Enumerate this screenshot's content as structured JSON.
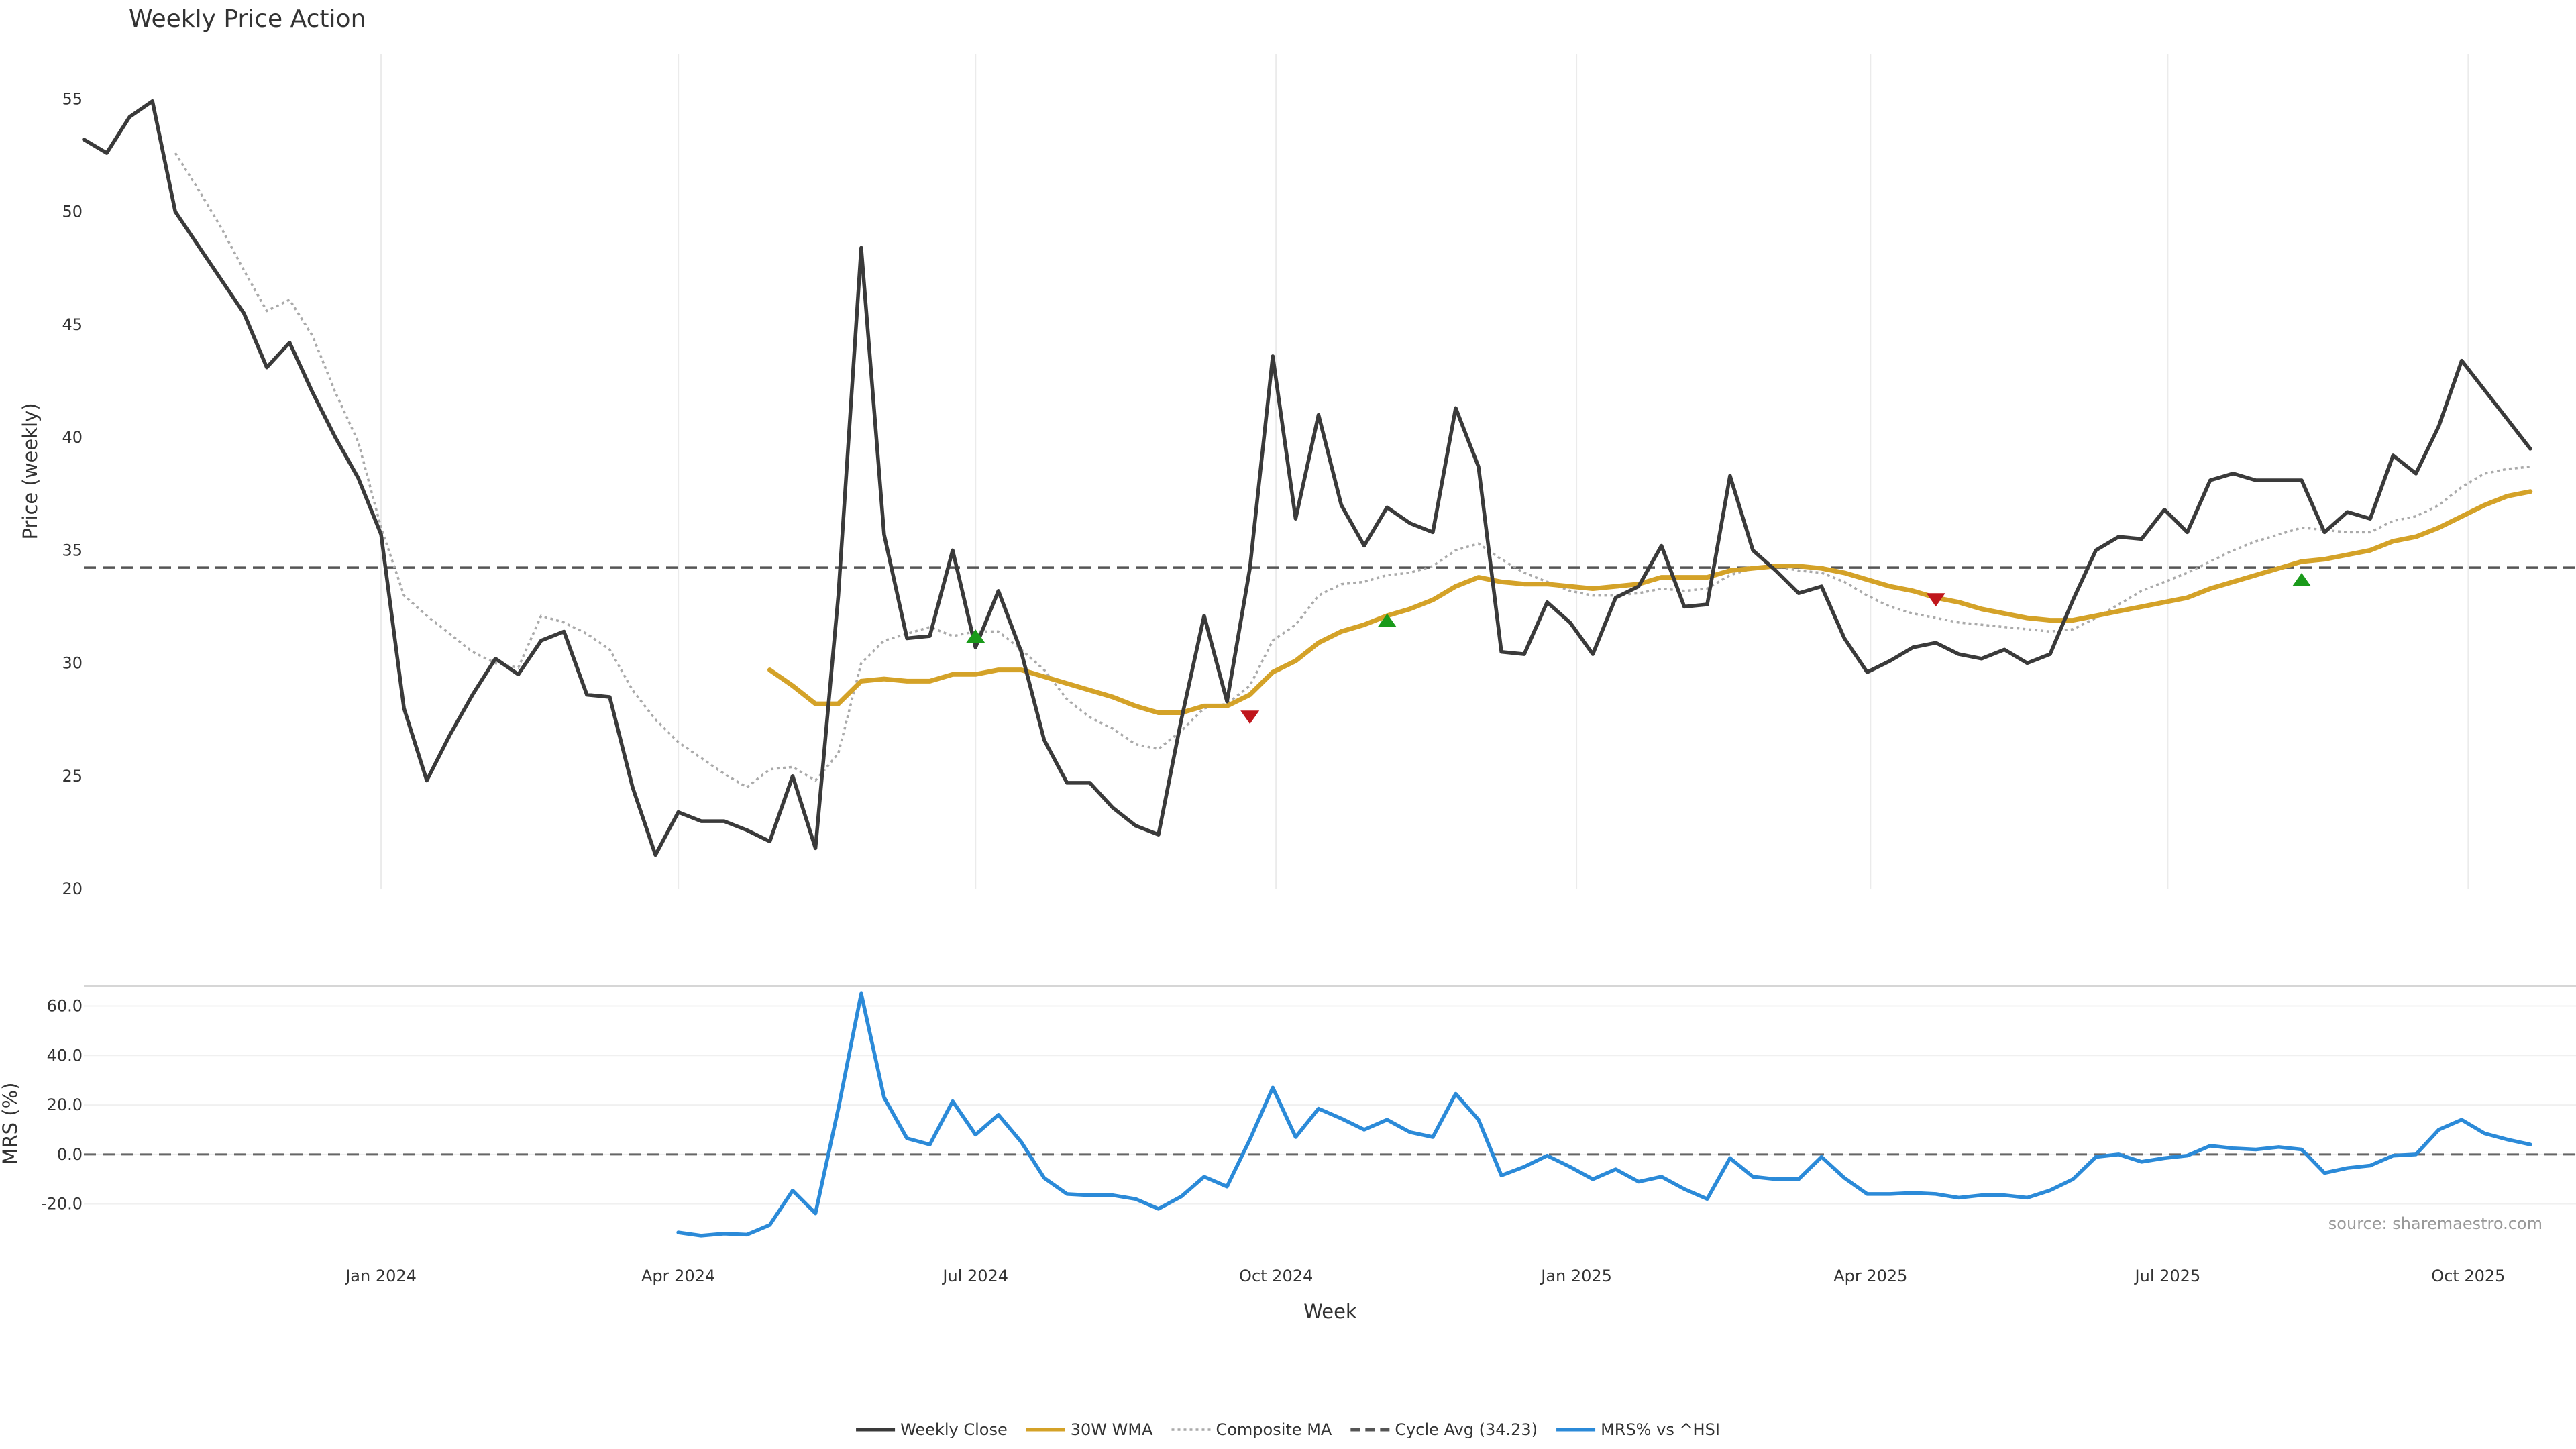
{
  "chart_data": {
    "type": "line",
    "title": "Weekly Price Action",
    "source": "source: sharemaestro.com",
    "xlabel": "Week",
    "x_tick_labels": [
      "Jan 2024",
      "Apr 2024",
      "Jul 2024",
      "Oct 2024",
      "Jan 2025",
      "Apr 2025",
      "Jul 2025",
      "Oct 2025"
    ],
    "x_tick_dates": [
      "2024-01-01",
      "2024-04-01",
      "2024-07-01",
      "2024-10-01",
      "2025-01-01",
      "2025-04-01",
      "2025-07-01",
      "2025-10-01"
    ],
    "x_range": [
      "2023-10-02",
      "2025-11-03"
    ],
    "x_dates": [
      "2023-10-02",
      "2023-10-09",
      "2023-10-16",
      "2023-10-23",
      "2023-10-30",
      "2023-11-06",
      "2023-11-13",
      "2023-11-20",
      "2023-11-27",
      "2023-12-04",
      "2023-12-11",
      "2023-12-18",
      "2023-12-25",
      "2024-01-01",
      "2024-01-08",
      "2024-01-15",
      "2024-01-22",
      "2024-01-29",
      "2024-02-05",
      "2024-02-12",
      "2024-02-19",
      "2024-02-26",
      "2024-03-04",
      "2024-03-11",
      "2024-03-18",
      "2024-03-25",
      "2024-04-01",
      "2024-04-08",
      "2024-04-15",
      "2024-04-22",
      "2024-04-29",
      "2024-05-06",
      "2024-05-13",
      "2024-05-20",
      "2024-05-27",
      "2024-06-03",
      "2024-06-10",
      "2024-06-17",
      "2024-06-24",
      "2024-07-01",
      "2024-07-08",
      "2024-07-15",
      "2024-07-22",
      "2024-07-29",
      "2024-08-05",
      "2024-08-12",
      "2024-08-19",
      "2024-08-26",
      "2024-09-02",
      "2024-09-09",
      "2024-09-16",
      "2024-09-23",
      "2024-09-30",
      "2024-10-07",
      "2024-10-14",
      "2024-10-21",
      "2024-10-28",
      "2024-11-04",
      "2024-11-11",
      "2024-11-18",
      "2024-11-25",
      "2024-12-02",
      "2024-12-09",
      "2024-12-16",
      "2024-12-23",
      "2024-12-30",
      "2025-01-06",
      "2025-01-13",
      "2025-01-20",
      "2025-01-27",
      "2025-02-03",
      "2025-02-10",
      "2025-02-17",
      "2025-02-24",
      "2025-03-03",
      "2025-03-10",
      "2025-03-17",
      "2025-03-24",
      "2025-03-31",
      "2025-04-07",
      "2025-04-14",
      "2025-04-21",
      "2025-04-28",
      "2025-05-05",
      "2025-05-12",
      "2025-05-19",
      "2025-05-26",
      "2025-06-02",
      "2025-06-09",
      "2025-06-16",
      "2025-06-23",
      "2025-06-30",
      "2025-07-07",
      "2025-07-14",
      "2025-07-21",
      "2025-07-28",
      "2025-08-04",
      "2025-08-11",
      "2025-08-18",
      "2025-08-25",
      "2025-09-01",
      "2025-09-08",
      "2025-09-15",
      "2025-09-22",
      "2025-09-29",
      "2025-10-06",
      "2025-10-13",
      "2025-10-20",
      "2025-10-27",
      "2025-11-03"
    ],
    "price_panel": {
      "ylabel": "Price (weekly)",
      "ylim": [
        20,
        57
      ],
      "yticks": [
        20,
        25,
        30,
        35,
        40,
        45,
        50,
        55
      ],
      "cycle_avg": 34.23,
      "series": [
        {
          "name": "Weekly Close",
          "color": "#3a3a3a",
          "style": "solid",
          "values": [
            53.2,
            52.6,
            54.2,
            54.9,
            50.0,
            48.5,
            47.0,
            45.5,
            43.1,
            44.2,
            42.0,
            40.0,
            38.2,
            35.7,
            28.0,
            24.8,
            26.8,
            28.6,
            30.2,
            29.5,
            31.0,
            31.4,
            28.6,
            28.5,
            24.5,
            21.5,
            23.4,
            23.0,
            23.0,
            22.6,
            22.1,
            25.0,
            21.8,
            33.0,
            48.4,
            35.7,
            31.1,
            31.2,
            35.0,
            30.7,
            33.2,
            30.5,
            26.6,
            24.7,
            24.7,
            23.6,
            22.8,
            22.4,
            27.5,
            32.1,
            28.3,
            34.2,
            43.6,
            36.4,
            41.0,
            37.0,
            35.2,
            36.9,
            36.2,
            35.8,
            41.3,
            38.7,
            30.5,
            30.4,
            32.7,
            31.8,
            30.4,
            32.9,
            33.4,
            35.2,
            32.5,
            32.6,
            38.3,
            35.0,
            34.1,
            33.1,
            33.4,
            31.1,
            29.6,
            30.1,
            30.7,
            30.9,
            30.4,
            30.2,
            30.6,
            30.0,
            30.4,
            32.8,
            35.0,
            35.6,
            35.5,
            36.8,
            35.8,
            38.1,
            38.4,
            38.1,
            38.1,
            38.1,
            35.8,
            36.7,
            36.4,
            39.2,
            38.4,
            40.5,
            43.4,
            42.1,
            40.8,
            39.5
          ]
        },
        {
          "name": "30W WMA",
          "color": "#d4a228",
          "style": "solid",
          "values": [
            null,
            null,
            null,
            null,
            null,
            null,
            null,
            null,
            null,
            null,
            null,
            null,
            null,
            null,
            null,
            null,
            null,
            null,
            null,
            null,
            null,
            null,
            null,
            null,
            null,
            null,
            null,
            null,
            null,
            null,
            29.7,
            29.0,
            28.2,
            28.2,
            29.2,
            29.3,
            29.2,
            29.2,
            29.5,
            29.5,
            29.7,
            29.7,
            29.4,
            29.1,
            28.8,
            28.5,
            28.1,
            27.8,
            27.8,
            28.1,
            28.1,
            28.6,
            29.6,
            30.1,
            30.9,
            31.4,
            31.7,
            32.1,
            32.4,
            32.8,
            33.4,
            33.8,
            33.6,
            33.5,
            33.5,
            33.4,
            33.3,
            33.4,
            33.5,
            33.8,
            33.8,
            33.8,
            34.1,
            34.2,
            34.3,
            34.3,
            34.2,
            34.0,
            33.7,
            33.4,
            33.2,
            32.9,
            32.7,
            32.4,
            32.2,
            32.0,
            31.9,
            31.9,
            32.1,
            32.3,
            32.5,
            32.7,
            32.9,
            33.3,
            33.6,
            33.9,
            34.2,
            34.5,
            34.6,
            34.8,
            35.0,
            35.4,
            35.6,
            36.0,
            36.5,
            37.0,
            37.4,
            37.6
          ]
        },
        {
          "name": "Composite MA",
          "color": "#aaaaaa",
          "style": "dotted",
          "values": [
            null,
            null,
            null,
            null,
            52.6,
            51.0,
            49.3,
            47.4,
            45.6,
            46.1,
            44.5,
            42.0,
            39.8,
            36.0,
            33.0,
            32.1,
            31.3,
            30.5,
            30.0,
            29.8,
            32.1,
            31.8,
            31.3,
            30.6,
            28.8,
            27.5,
            26.5,
            25.8,
            25.1,
            24.5,
            25.3,
            25.4,
            24.8,
            26.0,
            30.0,
            31.0,
            31.3,
            31.6,
            31.2,
            31.4,
            31.4,
            30.6,
            29.7,
            28.4,
            27.6,
            27.1,
            26.4,
            26.2,
            27.0,
            28.0,
            28.2,
            29.0,
            31.0,
            31.7,
            33.0,
            33.5,
            33.6,
            33.9,
            34.0,
            34.3,
            35.0,
            35.3,
            34.6,
            34.0,
            33.6,
            33.2,
            33.0,
            33.0,
            33.1,
            33.3,
            33.2,
            33.3,
            33.9,
            34.2,
            34.3,
            34.1,
            34.0,
            33.6,
            33.0,
            32.5,
            32.2,
            32.0,
            31.8,
            31.7,
            31.6,
            31.5,
            31.4,
            31.5,
            32.0,
            32.6,
            33.2,
            33.6,
            34.0,
            34.5,
            35.0,
            35.4,
            35.7,
            36.0,
            35.9,
            35.8,
            35.8,
            36.3,
            36.5,
            37.0,
            37.8,
            38.4,
            38.6,
            38.7
          ]
        }
      ],
      "signals": [
        {
          "type": "buy",
          "date": "2024-07-01",
          "value": 31.2,
          "color": "#1a9a1a"
        },
        {
          "type": "sell",
          "date": "2024-09-23",
          "value": 27.6,
          "color": "#c0161c"
        },
        {
          "type": "buy",
          "date": "2024-11-04",
          "value": 31.9,
          "color": "#1a9a1a"
        },
        {
          "type": "sell",
          "date": "2025-04-21",
          "value": 32.8,
          "color": "#c0161c"
        },
        {
          "type": "buy",
          "date": "2025-08-11",
          "value": 33.7,
          "color": "#1a9a1a"
        }
      ]
    },
    "mrs_panel": {
      "ylabel": "MRS (%)",
      "ylim": [
        -35,
        68
      ],
      "yticks": [
        -20,
        0,
        20,
        40,
        60
      ],
      "ytick_labels": [
        "-20.0",
        "0.0",
        "20.0",
        "40.0",
        "60.0"
      ],
      "zero_line": 0,
      "series": [
        {
          "name": "MRS% vs ^HSI",
          "color": "#2b8ad8",
          "style": "solid",
          "values": [
            null,
            null,
            null,
            null,
            null,
            null,
            null,
            null,
            null,
            null,
            null,
            null,
            null,
            null,
            null,
            null,
            null,
            null,
            null,
            null,
            null,
            null,
            null,
            null,
            null,
            null,
            -31.5,
            -32.8,
            -32.0,
            -32.4,
            -28.5,
            -14.6,
            -23.8,
            18.5,
            65.0,
            23.0,
            6.5,
            4.0,
            21.5,
            8.0,
            16.0,
            5.0,
            -9.5,
            -16.0,
            -16.5,
            -16.5,
            -18.0,
            -22.0,
            -17.0,
            -9.0,
            -13.0,
            6.0,
            27.0,
            7.0,
            18.5,
            14.5,
            10.0,
            14.0,
            9.0,
            7.0,
            24.5,
            14.0,
            -8.5,
            -5.0,
            -0.5,
            -5.0,
            -10.0,
            -6.0,
            -11.0,
            -9.0,
            -14.0,
            -18.0,
            -1.5,
            -9.0,
            -10.0,
            -10.0,
            -1.0,
            -9.5,
            -16.0,
            -16.0,
            -15.5,
            -16.0,
            -17.5,
            -16.5,
            -16.5,
            -17.5,
            -14.5,
            -10.0,
            -1.0,
            0.0,
            -3.0,
            -1.5,
            -0.5,
            3.5,
            2.5,
            2.0,
            3.0,
            2.0,
            -7.5,
            -5.5,
            -4.5,
            -0.5,
            0.0,
            10.0,
            14.0,
            8.5,
            6.0,
            4.0
          ]
        }
      ]
    },
    "legend": {
      "placement": "bottom-center",
      "entries": [
        {
          "label": "Weekly Close",
          "color": "#3a3a3a",
          "style": "solid"
        },
        {
          "label": "30W WMA",
          "color": "#d4a228",
          "style": "solid"
        },
        {
          "label": "Composite MA",
          "color": "#aaaaaa",
          "style": "dotted"
        },
        {
          "label": "Cycle Avg (34.23)",
          "color": "#555555",
          "style": "dashed"
        },
        {
          "label": "MRS% vs ^HSI",
          "color": "#2b8ad8",
          "style": "solid"
        }
      ]
    },
    "grid": "vertical"
  }
}
